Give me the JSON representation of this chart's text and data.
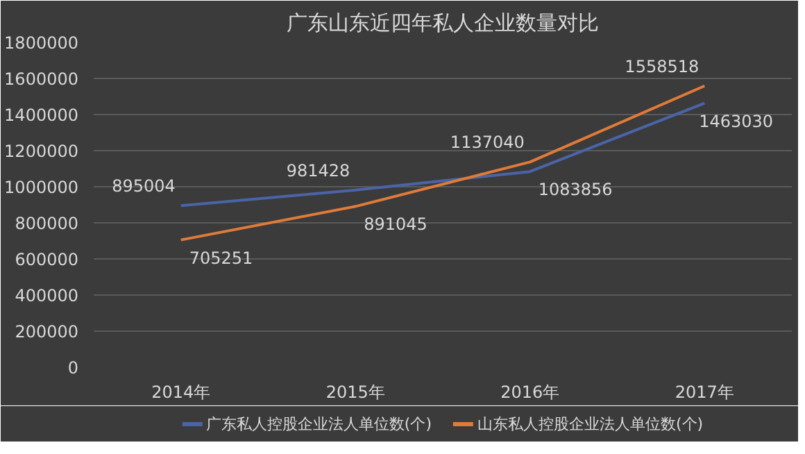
{
  "chart_data": {
    "type": "line",
    "title": "广东山东近四年私人企业数量对比",
    "categories": [
      "2014年",
      "2015年",
      "2016年",
      "2017年"
    ],
    "series": [
      {
        "name": "广东私人控股企业法人单位数(个)",
        "color": "#4a64a8",
        "values": [
          895004,
          981428,
          1083856,
          1463030
        ]
      },
      {
        "name": "山东私人控股企业法人单位数(个)",
        "color": "#e07b39",
        "values": [
          705251,
          891045,
          1137040,
          1558518
        ]
      }
    ],
    "ylim": [
      0,
      1800000
    ],
    "yticks": [
      0,
      200000,
      400000,
      600000,
      800000,
      1000000,
      1200000,
      1400000,
      1600000,
      1800000
    ],
    "grid": "y",
    "legend": "bottom",
    "data_labels": true,
    "line_style": "solid"
  }
}
